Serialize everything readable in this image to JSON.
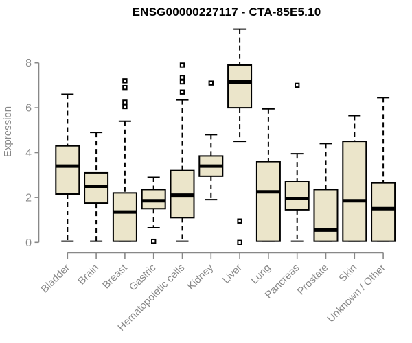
{
  "page": {
    "title": "ENSG00000227117 - CTA-85E5.10"
  },
  "chart_data": {
    "type": "boxplot",
    "title": "ENSG00000227117 - CTA-85E5.10",
    "xlabel": "",
    "ylabel": "Expression",
    "yticks": [
      0,
      2,
      4,
      6,
      8
    ],
    "ylim": [
      0,
      9.8
    ],
    "grid": false,
    "legend": "none",
    "categories": [
      "Bladder",
      "Brain",
      "Breast",
      "Gastric",
      "Hematopoietic cells",
      "Kidney",
      "Liver",
      "Lung",
      "Pancreas",
      "Prostate",
      "Skin",
      "Unknown / Other"
    ],
    "boxes": [
      {
        "category": "Bladder",
        "whisker_low": 0.05,
        "q1": 2.15,
        "median": 3.4,
        "q3": 4.3,
        "whisker_high": 6.6,
        "outliers": []
      },
      {
        "category": "Brain",
        "whisker_low": 0.05,
        "q1": 1.75,
        "median": 2.5,
        "q3": 3.1,
        "whisker_high": 4.9,
        "outliers": []
      },
      {
        "category": "Breast",
        "whisker_low": 0.05,
        "q1": 0.05,
        "median": 1.35,
        "q3": 2.2,
        "whisker_high": 5.4,
        "outliers": [
          6.05,
          6.25,
          6.9,
          7.2
        ]
      },
      {
        "category": "Gastric",
        "whisker_low": 0.65,
        "q1": 1.5,
        "median": 1.85,
        "q3": 2.35,
        "whisker_high": 2.9,
        "outliers": [
          0.05
        ]
      },
      {
        "category": "Hematopoietic cells",
        "whisker_low": 0.05,
        "q1": 1.1,
        "median": 2.1,
        "q3": 3.2,
        "whisker_high": 6.35,
        "outliers": [
          6.7,
          7.15,
          7.35,
          7.9
        ]
      },
      {
        "category": "Kidney",
        "whisker_low": 1.9,
        "q1": 2.95,
        "median": 3.4,
        "q3": 3.85,
        "whisker_high": 4.8,
        "outliers": [
          7.1
        ]
      },
      {
        "category": "Liver",
        "whisker_low": 4.5,
        "q1": 6.0,
        "median": 7.15,
        "q3": 7.9,
        "whisker_high": 9.5,
        "outliers": [
          0.95,
          0.0
        ]
      },
      {
        "category": "Lung",
        "whisker_low": 0.05,
        "q1": 0.05,
        "median": 2.25,
        "q3": 3.6,
        "whisker_high": 5.95,
        "outliers": []
      },
      {
        "category": "Pancreas",
        "whisker_low": 0.05,
        "q1": 1.45,
        "median": 1.95,
        "q3": 2.7,
        "whisker_high": 3.95,
        "outliers": [
          7.0
        ]
      },
      {
        "category": "Prostate",
        "whisker_low": 0.05,
        "q1": 0.05,
        "median": 0.55,
        "q3": 2.35,
        "whisker_high": 4.4,
        "outliers": []
      },
      {
        "category": "Skin",
        "whisker_low": 0.05,
        "q1": 0.05,
        "median": 1.85,
        "q3": 4.5,
        "whisker_high": 5.65,
        "outliers": []
      },
      {
        "category": "Unknown / Other",
        "whisker_low": 0.05,
        "q1": 0.05,
        "median": 1.5,
        "q3": 2.65,
        "whisker_high": 6.45,
        "outliers": []
      }
    ],
    "colors": {
      "box_fill": "#EBE5CA",
      "box_border": "#000000",
      "median": "#000000",
      "whisker": "#000000",
      "axis": "#888888",
      "tick_label": "#888888",
      "category_label": "#888888",
      "axis_title": "#888888",
      "title": "#000000",
      "background": "#FFFFFF"
    }
  }
}
